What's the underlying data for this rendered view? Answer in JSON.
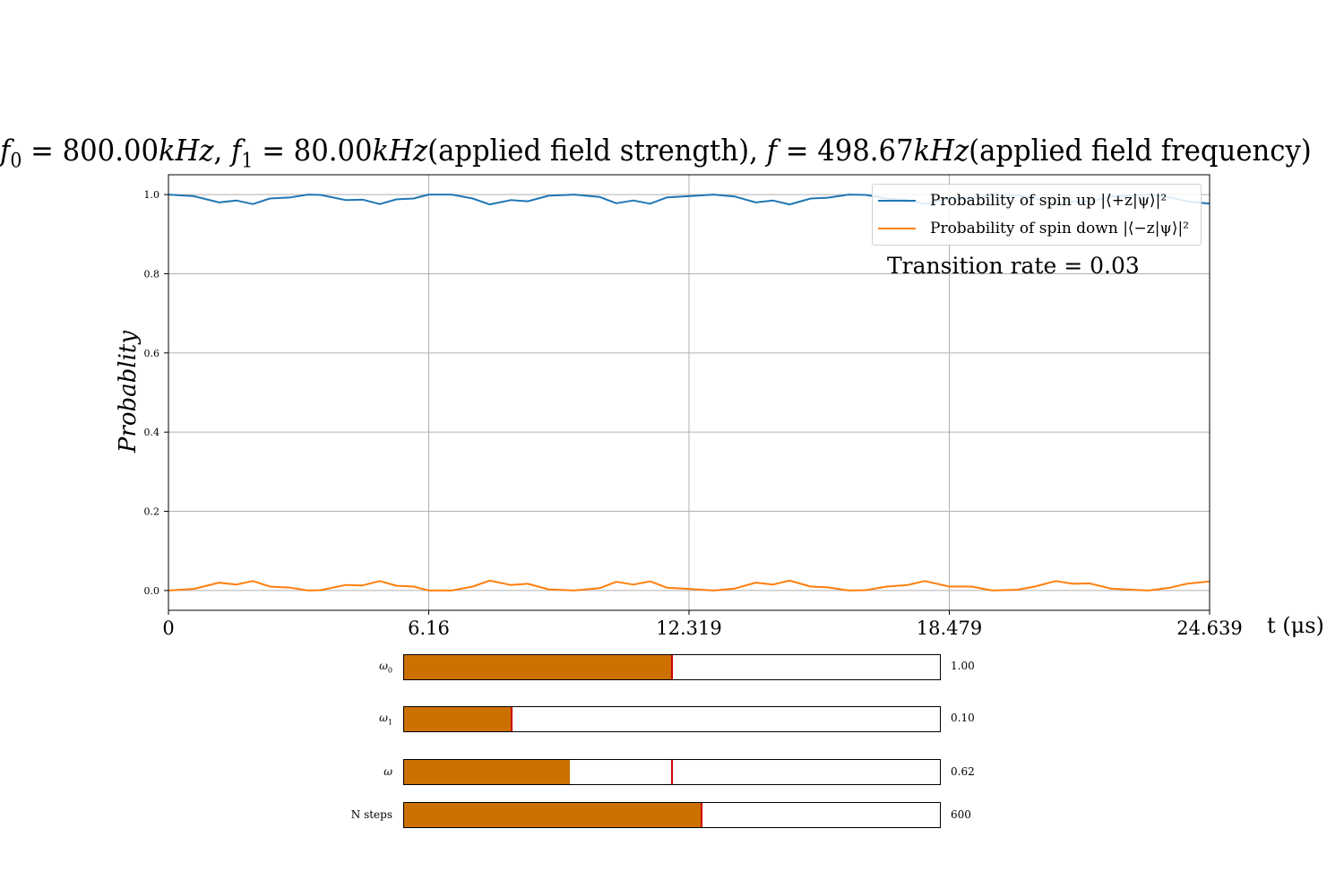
{
  "chart_data": {
    "type": "line",
    "title": "f_0 = 800.00kHz, f_1 = 80.00kHz(applied field strength), f = 498.67kHz(applied field frequency)",
    "title_parts": {
      "f0": "800.00",
      "f1": "80.00",
      "f": "498.67",
      "unit": "kHz",
      "strength_note": "(applied field strength)",
      "frequency_note": "(applied field frequency)"
    },
    "xlabel": "t (μs)",
    "ylabel": "Probablity",
    "xlim": [
      0,
      24.639
    ],
    "ylim": [
      -0.05,
      1.05
    ],
    "x_ticks": [
      "0",
      "6.16",
      "12.319",
      "18.479",
      "24.639"
    ],
    "x_tick_values": [
      0,
      6.16,
      12.319,
      18.479,
      24.639
    ],
    "y_ticks": [
      "0.0",
      "0.2",
      "0.4",
      "0.6",
      "0.8",
      "1.0"
    ],
    "y_tick_values": [
      0.0,
      0.2,
      0.4,
      0.6,
      0.8,
      1.0
    ],
    "grid": true,
    "legend_position": "top-right",
    "series": [
      {
        "name": "Probability of spin up |⟨+z|ψ⟩|²",
        "color": "#1f77b4",
        "x": [
          0,
          0.6,
          1.2,
          1.6,
          2.0,
          2.4,
          2.9,
          3.3,
          3.6,
          4.2,
          4.6,
          5.0,
          5.4,
          5.8,
          6.16,
          6.7,
          7.2,
          7.6,
          8.1,
          8.5,
          9.0,
          9.6,
          10.2,
          10.6,
          11.0,
          11.4,
          11.8,
          12.319,
          12.9,
          13.4,
          13.9,
          14.3,
          14.7,
          15.2,
          15.6,
          16.1,
          16.5,
          17.0,
          17.5,
          17.9,
          18.479,
          19.0,
          19.5,
          20.1,
          20.5,
          21.0,
          21.4,
          21.8,
          22.3,
          22.8,
          23.2,
          23.7,
          24.1,
          24.639
        ],
        "y": [
          1.0,
          0.996,
          0.98,
          0.985,
          0.976,
          0.99,
          0.993,
          1.0,
          0.999,
          0.986,
          0.987,
          0.976,
          0.988,
          0.99,
          1.0,
          1.0,
          0.99,
          0.975,
          0.986,
          0.983,
          0.997,
          1.0,
          0.994,
          0.978,
          0.985,
          0.977,
          0.993,
          0.996,
          1.0,
          0.995,
          0.98,
          0.985,
          0.975,
          0.99,
          0.992,
          1.0,
          0.999,
          0.99,
          0.986,
          0.976,
          0.99,
          0.99,
          1.0,
          0.998,
          0.99,
          0.976,
          0.983,
          0.982,
          0.995,
          0.998,
          1.0,
          0.993,
          0.983,
          0.977
        ]
      },
      {
        "name": "Probability of spin down |⟨−z|ψ⟩|²",
        "color": "#ff7f0e",
        "x": [
          0,
          0.6,
          1.2,
          1.6,
          2.0,
          2.4,
          2.9,
          3.3,
          3.6,
          4.2,
          4.6,
          5.0,
          5.4,
          5.8,
          6.16,
          6.7,
          7.2,
          7.6,
          8.1,
          8.5,
          9.0,
          9.6,
          10.2,
          10.6,
          11.0,
          11.4,
          11.8,
          12.319,
          12.9,
          13.4,
          13.9,
          14.3,
          14.7,
          15.2,
          15.6,
          16.1,
          16.5,
          17.0,
          17.5,
          17.9,
          18.479,
          19.0,
          19.5,
          20.1,
          20.5,
          21.0,
          21.4,
          21.8,
          22.3,
          22.8,
          23.2,
          23.7,
          24.1,
          24.639
        ],
        "y": [
          0.0,
          0.004,
          0.02,
          0.015,
          0.024,
          0.01,
          0.007,
          0.0,
          0.001,
          0.014,
          0.013,
          0.024,
          0.012,
          0.01,
          0.0,
          0.0,
          0.01,
          0.025,
          0.014,
          0.017,
          0.003,
          0.0,
          0.006,
          0.022,
          0.015,
          0.023,
          0.007,
          0.004,
          0.0,
          0.005,
          0.02,
          0.015,
          0.025,
          0.01,
          0.008,
          0.0,
          0.001,
          0.01,
          0.014,
          0.024,
          0.01,
          0.01,
          0.0,
          0.002,
          0.01,
          0.024,
          0.017,
          0.018,
          0.005,
          0.002,
          0.0,
          0.007,
          0.017,
          0.023
        ]
      }
    ]
  },
  "annotation": "Transition rate = 0.03",
  "sliders": [
    {
      "label_sym": "ω",
      "label_sub": "0",
      "value_text": "1.00",
      "fraction": 0.5,
      "initial_fraction": 0.5
    },
    {
      "label_sym": "ω",
      "label_sub": "1",
      "value_text": "0.10",
      "fraction": 0.2,
      "initial_fraction": 0.2
    },
    {
      "label_sym": "ω",
      "label_sub": "",
      "value_text": "0.62",
      "fraction": 0.31,
      "initial_fraction": 0.5
    },
    {
      "label_sym": "N steps",
      "label_sub": "",
      "value_text": "600",
      "fraction": 0.555,
      "initial_fraction": 0.555
    }
  ],
  "colors": {
    "slider_fill": "#cc7000",
    "slider_initial_marker": "#d00000",
    "grid": "#b0b0b0"
  }
}
